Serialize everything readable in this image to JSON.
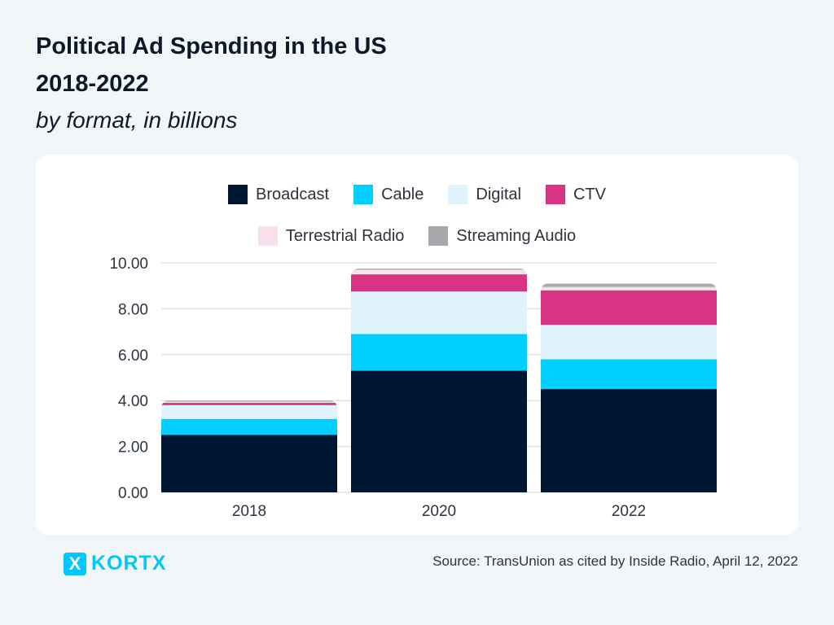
{
  "chart_data": {
    "type": "bar",
    "stacked": true,
    "title": [
      "Political Ad Spending in the US",
      "2018-2022"
    ],
    "subtitle": "by format, in billions",
    "categories": [
      "2018",
      "2020",
      "2022"
    ],
    "series": [
      {
        "name": "Broadcast",
        "color": "#001733",
        "values": [
          2.5,
          5.3,
          4.5
        ]
      },
      {
        "name": "Cable",
        "color": "#00cfff",
        "values": [
          0.7,
          1.6,
          1.3
        ]
      },
      {
        "name": "Digital",
        "color": "#e0f4fd",
        "values": [
          0.6,
          1.85,
          1.5
        ]
      },
      {
        "name": "CTV",
        "color": "#d93385",
        "values": [
          0.1,
          0.75,
          1.5
        ]
      },
      {
        "name": "Terrestrial Radio",
        "color": "#f7e0ec",
        "values": [
          0.05,
          0.2,
          0.15
        ]
      },
      {
        "name": "Streaming Audio",
        "color": "#a7a9ac",
        "values": [
          0.05,
          0.05,
          0.15
        ]
      }
    ],
    "ylim": [
      0,
      10
    ],
    "yticks": [
      "0.00",
      "2.00",
      "4.00",
      "6.00",
      "8.00",
      "10.00"
    ],
    "grid": true,
    "legend_placement": "top-center"
  },
  "footer": {
    "source": "Source: TransUnion as cited by Inside Radio, April 12, 2022",
    "logo_mark": "X",
    "logo_text": "KORTX"
  }
}
